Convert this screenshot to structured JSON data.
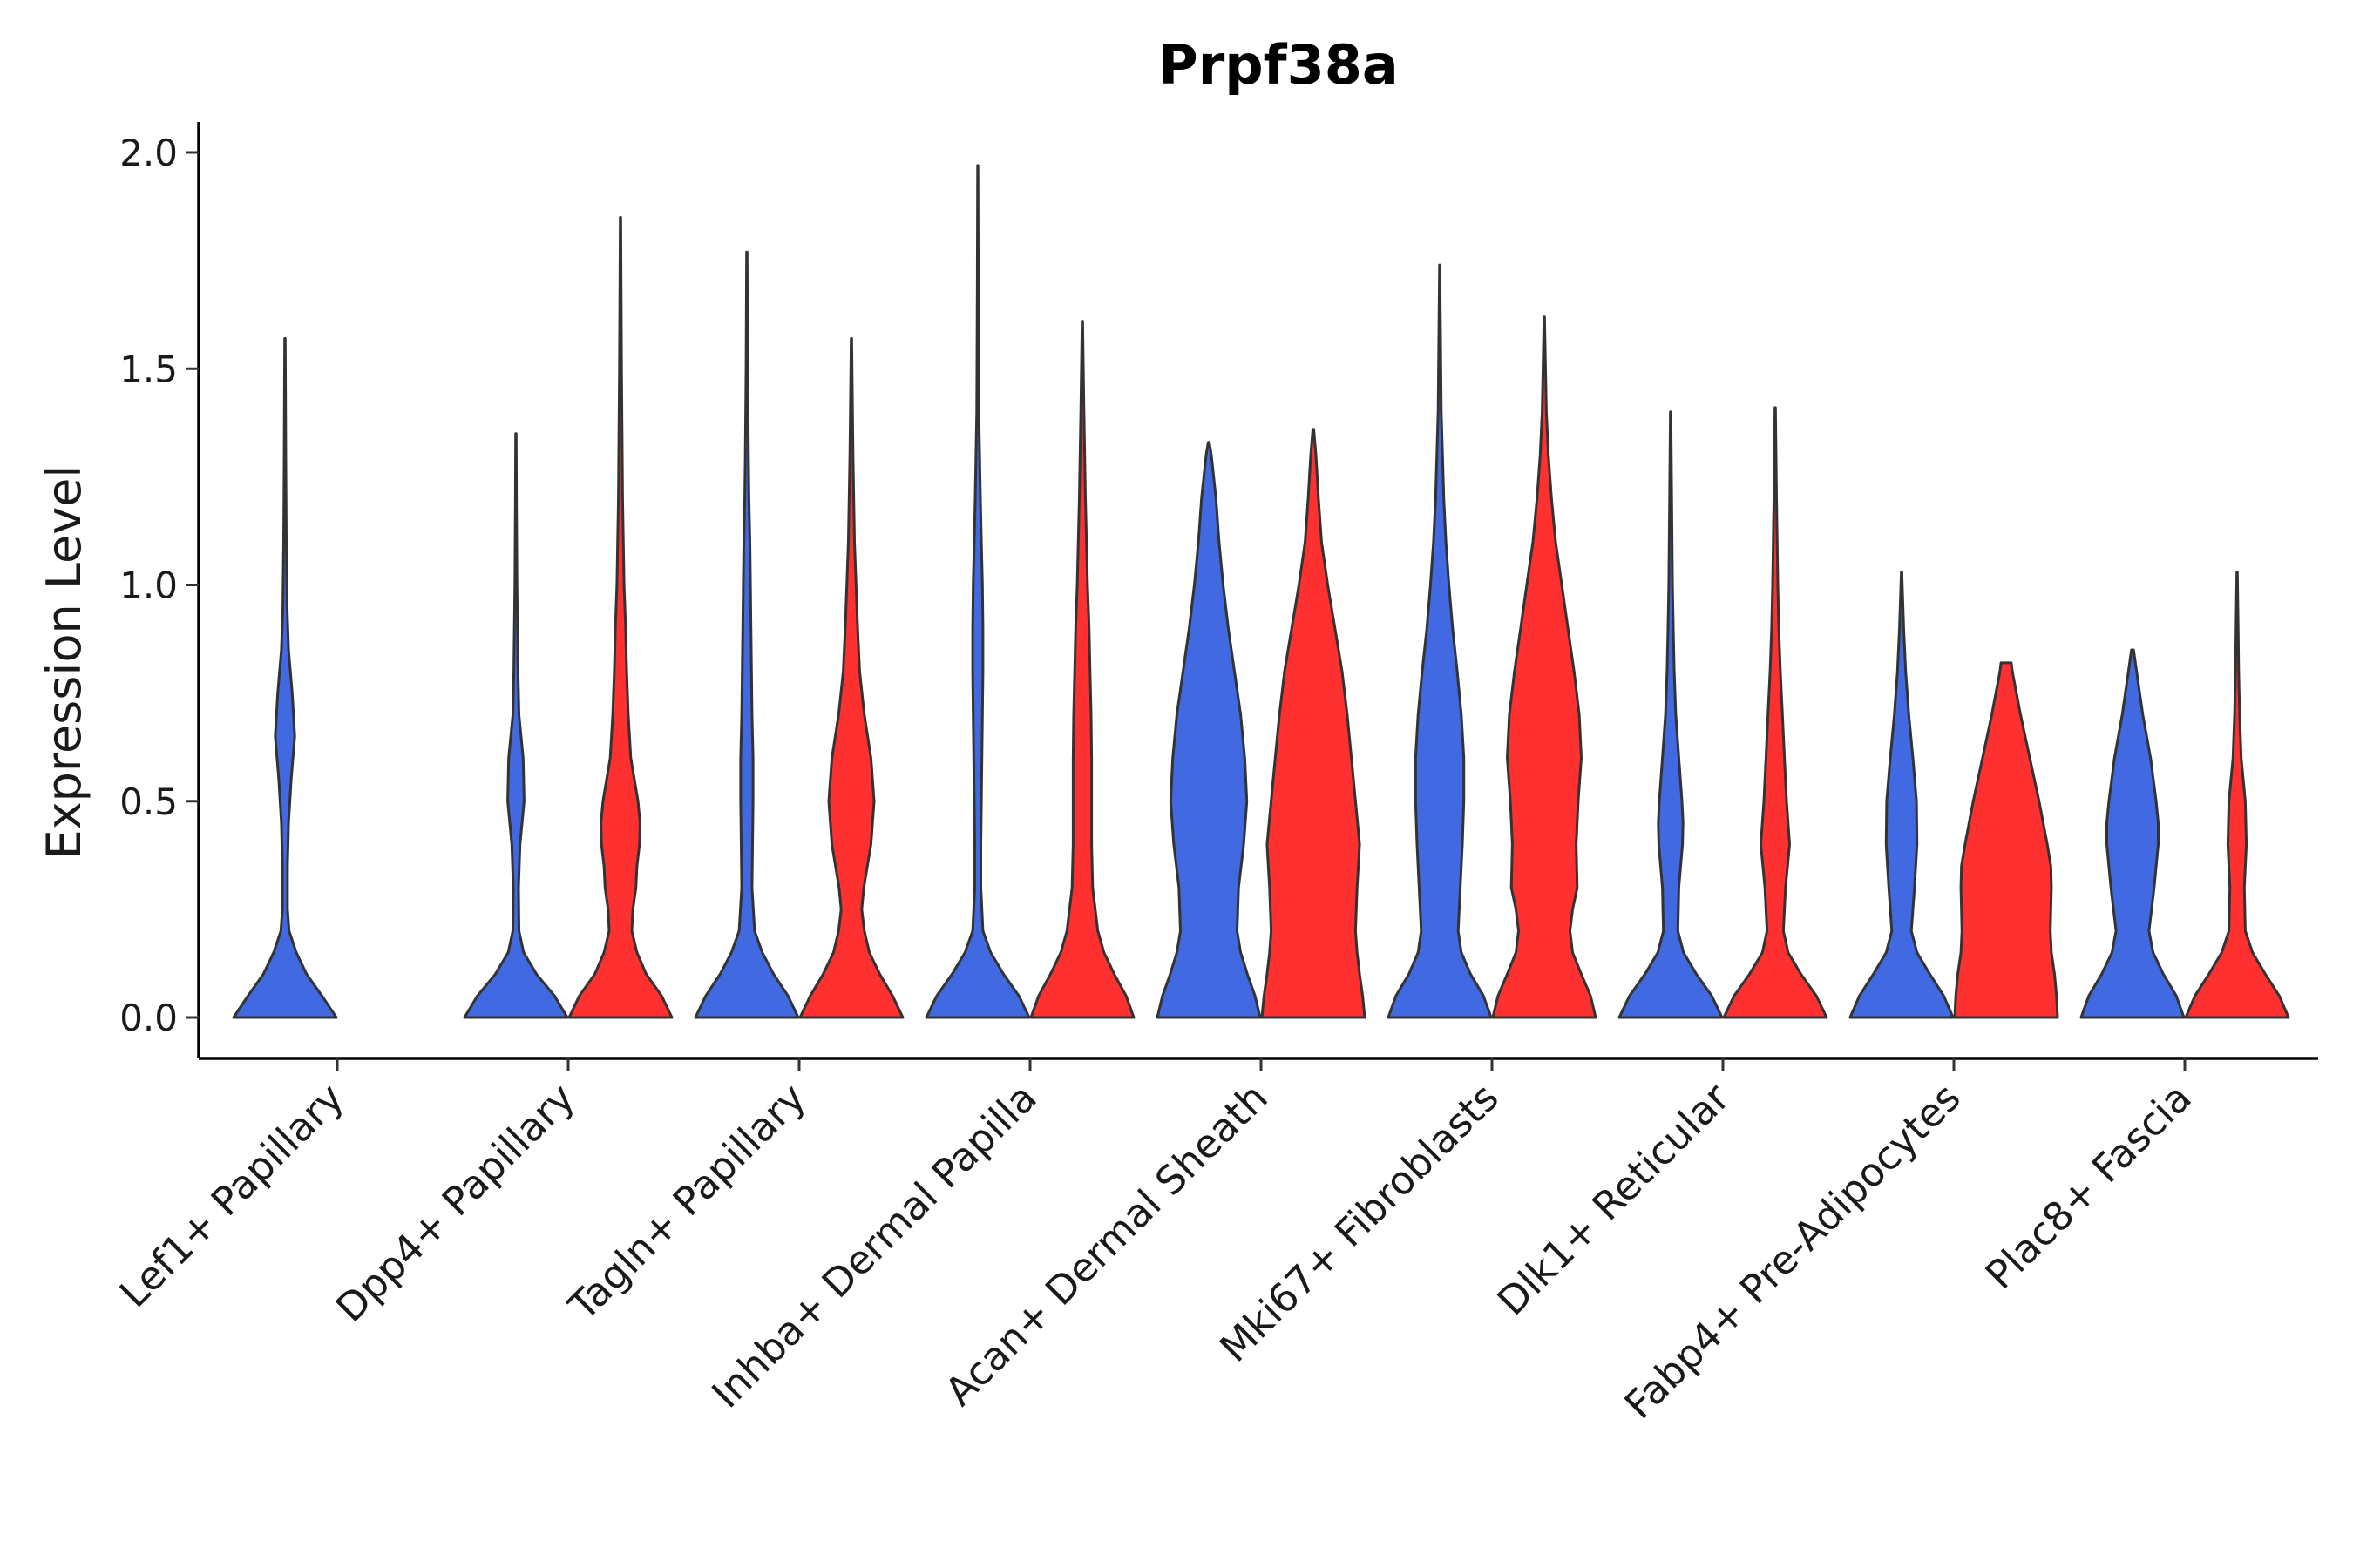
{
  "chart_data": {
    "type": "violin",
    "title": "Prpf38a",
    "xlabel": "",
    "ylabel": "Expression Level",
    "ylim": [
      -0.1,
      2.07
    ],
    "yticks": [
      0.0,
      0.5,
      1.0,
      1.5,
      2.0
    ],
    "ytick_labels": [
      "0.0",
      "0.5",
      "1.0",
      "1.5",
      "2.0"
    ],
    "grid": false,
    "legend": "none",
    "series_colors": [
      "#4169E1",
      "#FF3030"
    ],
    "categories": [
      "Lef1+ Papillary",
      "Dpp4+ Papillary",
      "Tagln+ Papillary",
      "Inhba+ Dermal Papilla",
      "Acan+ Dermal Sheath",
      "Mki67+ Fibroblasts",
      "Dlk1+ Reticular",
      "Fabp4+ Pre-Adipocytes",
      "Plac8+ Fascia"
    ],
    "violins": [
      {
        "category": "Lef1+ Papillary",
        "group": 1,
        "max": 1.57,
        "profile": [
          [
            0,
            1.0
          ],
          [
            0.05,
            0.72
          ],
          [
            0.1,
            0.42
          ],
          [
            0.15,
            0.22
          ],
          [
            0.2,
            0.08
          ],
          [
            0.25,
            0.05
          ],
          [
            0.35,
            0.05
          ],
          [
            0.45,
            0.07
          ],
          [
            0.55,
            0.12
          ],
          [
            0.65,
            0.19
          ],
          [
            0.75,
            0.14
          ],
          [
            0.85,
            0.07
          ],
          [
            0.95,
            0.04
          ],
          [
            1.1,
            0.025
          ],
          [
            1.3,
            0.015
          ],
          [
            1.45,
            0.01
          ],
          [
            1.57,
            0.005
          ]
        ]
      },
      {
        "category": "Dpp4+ Papillary",
        "group": 1,
        "max": 1.35,
        "profile": [
          [
            0,
            1.0
          ],
          [
            0.05,
            0.75
          ],
          [
            0.1,
            0.4
          ],
          [
            0.15,
            0.15
          ],
          [
            0.2,
            0.06
          ],
          [
            0.3,
            0.05
          ],
          [
            0.4,
            0.08
          ],
          [
            0.5,
            0.16
          ],
          [
            0.6,
            0.14
          ],
          [
            0.7,
            0.06
          ],
          [
            0.8,
            0.04
          ],
          [
            0.9,
            0.03
          ],
          [
            1.0,
            0.02
          ],
          [
            1.2,
            0.01
          ],
          [
            1.35,
            0.005
          ]
        ]
      },
      {
        "category": "Dpp4+ Papillary",
        "group": 2,
        "max": 1.85,
        "profile": [
          [
            0,
            1.0
          ],
          [
            0.05,
            0.8
          ],
          [
            0.1,
            0.5
          ],
          [
            0.15,
            0.32
          ],
          [
            0.2,
            0.22
          ],
          [
            0.25,
            0.24
          ],
          [
            0.3,
            0.3
          ],
          [
            0.35,
            0.32
          ],
          [
            0.4,
            0.37
          ],
          [
            0.45,
            0.38
          ],
          [
            0.5,
            0.34
          ],
          [
            0.6,
            0.2
          ],
          [
            0.7,
            0.15
          ],
          [
            0.8,
            0.12
          ],
          [
            0.9,
            0.1
          ],
          [
            1.0,
            0.07
          ],
          [
            1.2,
            0.04
          ],
          [
            1.5,
            0.02
          ],
          [
            1.85,
            0.005
          ]
        ]
      },
      {
        "category": "Tagln+ Papillary",
        "group": 1,
        "max": 1.77,
        "profile": [
          [
            0,
            1.0
          ],
          [
            0.05,
            0.8
          ],
          [
            0.1,
            0.52
          ],
          [
            0.15,
            0.3
          ],
          [
            0.2,
            0.15
          ],
          [
            0.3,
            0.1
          ],
          [
            0.4,
            0.11
          ],
          [
            0.5,
            0.12
          ],
          [
            0.6,
            0.12
          ],
          [
            0.7,
            0.1
          ],
          [
            0.8,
            0.09
          ],
          [
            0.9,
            0.08
          ],
          [
            1.0,
            0.07
          ],
          [
            1.1,
            0.06
          ],
          [
            1.2,
            0.04
          ],
          [
            1.3,
            0.03
          ],
          [
            1.5,
            0.015
          ],
          [
            1.77,
            0.005
          ]
        ]
      },
      {
        "category": "Tagln+ Papillary",
        "group": 2,
        "max": 1.57,
        "profile": [
          [
            0,
            1.0
          ],
          [
            0.05,
            0.8
          ],
          [
            0.1,
            0.55
          ],
          [
            0.15,
            0.35
          ],
          [
            0.2,
            0.25
          ],
          [
            0.25,
            0.2
          ],
          [
            0.3,
            0.24
          ],
          [
            0.4,
            0.38
          ],
          [
            0.5,
            0.44
          ],
          [
            0.6,
            0.38
          ],
          [
            0.7,
            0.25
          ],
          [
            0.8,
            0.16
          ],
          [
            0.9,
            0.12
          ],
          [
            1.0,
            0.09
          ],
          [
            1.1,
            0.06
          ],
          [
            1.3,
            0.03
          ],
          [
            1.57,
            0.005
          ]
        ]
      },
      {
        "category": "Inhba+ Dermal Papilla",
        "group": 1,
        "max": 1.97,
        "profile": [
          [
            0,
            1.0
          ],
          [
            0.05,
            0.8
          ],
          [
            0.1,
            0.5
          ],
          [
            0.15,
            0.25
          ],
          [
            0.2,
            0.1
          ],
          [
            0.3,
            0.06
          ],
          [
            0.4,
            0.06
          ],
          [
            0.5,
            0.07
          ],
          [
            0.6,
            0.08
          ],
          [
            0.7,
            0.09
          ],
          [
            0.8,
            0.1
          ],
          [
            0.9,
            0.1
          ],
          [
            1.0,
            0.09
          ],
          [
            1.1,
            0.07
          ],
          [
            1.2,
            0.05
          ],
          [
            1.4,
            0.02
          ],
          [
            1.7,
            0.01
          ],
          [
            1.97,
            0.004
          ]
        ]
      },
      {
        "category": "Inhba+ Dermal Papilla",
        "group": 2,
        "max": 1.61,
        "profile": [
          [
            0,
            1.0
          ],
          [
            0.05,
            0.85
          ],
          [
            0.1,
            0.62
          ],
          [
            0.15,
            0.42
          ],
          [
            0.2,
            0.3
          ],
          [
            0.3,
            0.2
          ],
          [
            0.4,
            0.18
          ],
          [
            0.5,
            0.18
          ],
          [
            0.6,
            0.18
          ],
          [
            0.7,
            0.17
          ],
          [
            0.8,
            0.15
          ],
          [
            0.9,
            0.13
          ],
          [
            1.0,
            0.1
          ],
          [
            1.1,
            0.08
          ],
          [
            1.2,
            0.06
          ],
          [
            1.4,
            0.03
          ],
          [
            1.61,
            0.005
          ]
        ]
      },
      {
        "category": "Acan+ Dermal Sheath",
        "group": 1,
        "max": 1.33,
        "profile": [
          [
            0,
            1.0
          ],
          [
            0.05,
            0.9
          ],
          [
            0.1,
            0.75
          ],
          [
            0.15,
            0.62
          ],
          [
            0.2,
            0.55
          ],
          [
            0.3,
            0.58
          ],
          [
            0.4,
            0.68
          ],
          [
            0.5,
            0.74
          ],
          [
            0.6,
            0.7
          ],
          [
            0.7,
            0.62
          ],
          [
            0.8,
            0.5
          ],
          [
            0.9,
            0.38
          ],
          [
            1.0,
            0.28
          ],
          [
            1.1,
            0.2
          ],
          [
            1.2,
            0.14
          ],
          [
            1.3,
            0.05
          ],
          [
            1.33,
            0.01
          ]
        ]
      },
      {
        "category": "Acan+ Dermal Sheath",
        "group": 2,
        "max": 1.36,
        "profile": [
          [
            0,
            1.0
          ],
          [
            0.05,
            0.96
          ],
          [
            0.1,
            0.9
          ],
          [
            0.15,
            0.85
          ],
          [
            0.2,
            0.82
          ],
          [
            0.3,
            0.85
          ],
          [
            0.4,
            0.9
          ],
          [
            0.5,
            0.82
          ],
          [
            0.6,
            0.74
          ],
          [
            0.7,
            0.66
          ],
          [
            0.8,
            0.56
          ],
          [
            0.9,
            0.42
          ],
          [
            1.0,
            0.28
          ],
          [
            1.1,
            0.16
          ],
          [
            1.2,
            0.1
          ],
          [
            1.3,
            0.05
          ],
          [
            1.36,
            0.008
          ]
        ]
      },
      {
        "category": "Mki67+ Fibroblasts",
        "group": 1,
        "max": 1.74,
        "profile": [
          [
            0,
            1.0
          ],
          [
            0.05,
            0.85
          ],
          [
            0.1,
            0.6
          ],
          [
            0.15,
            0.42
          ],
          [
            0.2,
            0.36
          ],
          [
            0.3,
            0.4
          ],
          [
            0.4,
            0.44
          ],
          [
            0.5,
            0.47
          ],
          [
            0.6,
            0.47
          ],
          [
            0.7,
            0.42
          ],
          [
            0.8,
            0.34
          ],
          [
            0.9,
            0.25
          ],
          [
            1.0,
            0.18
          ],
          [
            1.1,
            0.12
          ],
          [
            1.2,
            0.08
          ],
          [
            1.4,
            0.03
          ],
          [
            1.74,
            0.004
          ]
        ]
      },
      {
        "category": "Mki67+ Fibroblasts",
        "group": 2,
        "max": 1.62,
        "profile": [
          [
            0,
            1.0
          ],
          [
            0.05,
            0.9
          ],
          [
            0.1,
            0.72
          ],
          [
            0.15,
            0.55
          ],
          [
            0.2,
            0.5
          ],
          [
            0.25,
            0.55
          ],
          [
            0.3,
            0.64
          ],
          [
            0.4,
            0.62
          ],
          [
            0.5,
            0.66
          ],
          [
            0.6,
            0.72
          ],
          [
            0.7,
            0.68
          ],
          [
            0.8,
            0.58
          ],
          [
            0.9,
            0.46
          ],
          [
            1.0,
            0.34
          ],
          [
            1.1,
            0.22
          ],
          [
            1.2,
            0.14
          ],
          [
            1.3,
            0.08
          ],
          [
            1.4,
            0.04
          ],
          [
            1.62,
            0.005
          ]
        ]
      },
      {
        "category": "Dlk1+ Reticular",
        "group": 1,
        "max": 1.4,
        "profile": [
          [
            0,
            1.0
          ],
          [
            0.05,
            0.8
          ],
          [
            0.1,
            0.5
          ],
          [
            0.15,
            0.25
          ],
          [
            0.2,
            0.14
          ],
          [
            0.3,
            0.16
          ],
          [
            0.4,
            0.23
          ],
          [
            0.45,
            0.24
          ],
          [
            0.5,
            0.22
          ],
          [
            0.6,
            0.16
          ],
          [
            0.7,
            0.1
          ],
          [
            0.8,
            0.07
          ],
          [
            0.9,
            0.05
          ],
          [
            1.0,
            0.035
          ],
          [
            1.2,
            0.02
          ],
          [
            1.4,
            0.005
          ]
        ]
      },
      {
        "category": "Dlk1+ Reticular",
        "group": 2,
        "max": 1.41,
        "profile": [
          [
            0,
            1.0
          ],
          [
            0.05,
            0.8
          ],
          [
            0.1,
            0.5
          ],
          [
            0.15,
            0.25
          ],
          [
            0.2,
            0.16
          ],
          [
            0.3,
            0.2
          ],
          [
            0.4,
            0.28
          ],
          [
            0.5,
            0.22
          ],
          [
            0.6,
            0.18
          ],
          [
            0.7,
            0.14
          ],
          [
            0.8,
            0.1
          ],
          [
            0.9,
            0.07
          ],
          [
            1.0,
            0.05
          ],
          [
            1.2,
            0.025
          ],
          [
            1.41,
            0.005
          ]
        ]
      },
      {
        "category": "Fabp4+ Pre-Adipocytes",
        "group": 1,
        "max": 1.03,
        "profile": [
          [
            0,
            1.0
          ],
          [
            0.05,
            0.82
          ],
          [
            0.1,
            0.55
          ],
          [
            0.15,
            0.3
          ],
          [
            0.2,
            0.19
          ],
          [
            0.3,
            0.25
          ],
          [
            0.4,
            0.3
          ],
          [
            0.5,
            0.29
          ],
          [
            0.6,
            0.22
          ],
          [
            0.7,
            0.14
          ],
          [
            0.8,
            0.08
          ],
          [
            0.9,
            0.04
          ],
          [
            1.03,
            0.005
          ]
        ]
      },
      {
        "category": "Fabp4+ Pre-Adipocytes",
        "group": 2,
        "max": 0.82,
        "profile": [
          [
            0,
            1.0
          ],
          [
            0.05,
            0.98
          ],
          [
            0.1,
            0.94
          ],
          [
            0.15,
            0.88
          ],
          [
            0.2,
            0.86
          ],
          [
            0.3,
            0.88
          ],
          [
            0.35,
            0.87
          ],
          [
            0.4,
            0.8
          ],
          [
            0.5,
            0.64
          ],
          [
            0.6,
            0.46
          ],
          [
            0.7,
            0.28
          ],
          [
            0.8,
            0.12
          ],
          [
            0.82,
            0.1
          ]
        ]
      },
      {
        "category": "Plac8+ Fascia",
        "group": 1,
        "max": 0.85,
        "profile": [
          [
            0,
            1.0
          ],
          [
            0.05,
            0.85
          ],
          [
            0.1,
            0.6
          ],
          [
            0.15,
            0.4
          ],
          [
            0.2,
            0.32
          ],
          [
            0.3,
            0.42
          ],
          [
            0.4,
            0.5
          ],
          [
            0.45,
            0.5
          ],
          [
            0.5,
            0.46
          ],
          [
            0.6,
            0.35
          ],
          [
            0.7,
            0.2
          ],
          [
            0.8,
            0.08
          ],
          [
            0.85,
            0.02
          ]
        ]
      },
      {
        "category": "Plac8+ Fascia",
        "group": 2,
        "max": 1.03,
        "profile": [
          [
            0,
            1.0
          ],
          [
            0.05,
            0.82
          ],
          [
            0.1,
            0.55
          ],
          [
            0.15,
            0.3
          ],
          [
            0.2,
            0.16
          ],
          [
            0.3,
            0.14
          ],
          [
            0.4,
            0.18
          ],
          [
            0.5,
            0.16
          ],
          [
            0.6,
            0.08
          ],
          [
            0.7,
            0.05
          ],
          [
            0.8,
            0.03
          ],
          [
            0.9,
            0.02
          ],
          [
            1.03,
            0.005
          ]
        ]
      }
    ]
  }
}
